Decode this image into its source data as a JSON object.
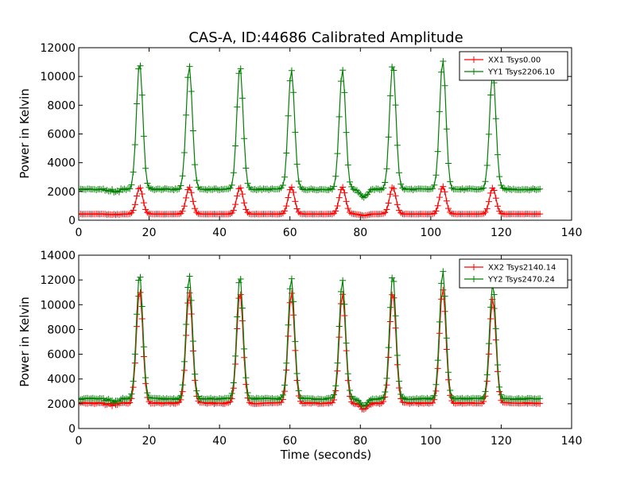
{
  "chart_data": [
    {
      "type": "line",
      "title": "CAS-A, ID:44686 Calibrated Amplitude",
      "xlabel": "",
      "ylabel": "Power in Kelvin",
      "xlim": [
        0,
        140
      ],
      "ylim": [
        0,
        12000
      ],
      "xticks": [
        "0",
        "20",
        "40",
        "60",
        "80",
        "100",
        "120",
        "140"
      ],
      "yticks": [
        "0",
        "2000",
        "4000",
        "6000",
        "8000",
        "10000",
        "12000"
      ],
      "legend_position": "top-right",
      "peak_times": [
        17.3,
        31.4,
        45.8,
        60.4,
        74.9,
        89.2,
        103.4,
        117.6
      ],
      "series": [
        {
          "name": "XX1 Tsys0.00",
          "color": "#ff0000",
          "baseline": 430,
          "peaks": [
            2300,
            2300,
            2300,
            2300,
            2300,
            2300,
            2350,
            2250
          ],
          "marker": "+"
        },
        {
          "name": "YY1 Tsys2206.10",
          "color": "#008000",
          "baseline": 2150,
          "peaks": [
            11000,
            10700,
            10700,
            10500,
            10500,
            10900,
            11100,
            10300
          ],
          "marker": "+"
        }
      ]
    },
    {
      "type": "line",
      "title": "",
      "xlabel": "Time (seconds)",
      "ylabel": "Power in Kelvin",
      "xlim": [
        0,
        140
      ],
      "ylim": [
        0,
        14000
      ],
      "xticks": [
        "0",
        "20",
        "40",
        "60",
        "80",
        "100",
        "120",
        "140"
      ],
      "yticks": [
        "0",
        "2000",
        "4000",
        "6000",
        "8000",
        "10000",
        "12000",
        "14000"
      ],
      "legend_position": "top-right",
      "peak_times": [
        17.3,
        31.4,
        45.8,
        60.4,
        74.9,
        89.2,
        103.4,
        117.6
      ],
      "series": [
        {
          "name": "XX2 Tsys2140.14",
          "color": "#ff0000",
          "baseline": 2050,
          "peaks": [
            11200,
            11000,
            11000,
            11000,
            10900,
            11000,
            11300,
            10500
          ],
          "marker": "+"
        },
        {
          "name": "YY2 Tsys2470.24",
          "color": "#008000",
          "baseline": 2400,
          "peaks": [
            12500,
            12300,
            12300,
            12200,
            12000,
            12400,
            12700,
            11700
          ],
          "marker": "+"
        }
      ]
    }
  ]
}
